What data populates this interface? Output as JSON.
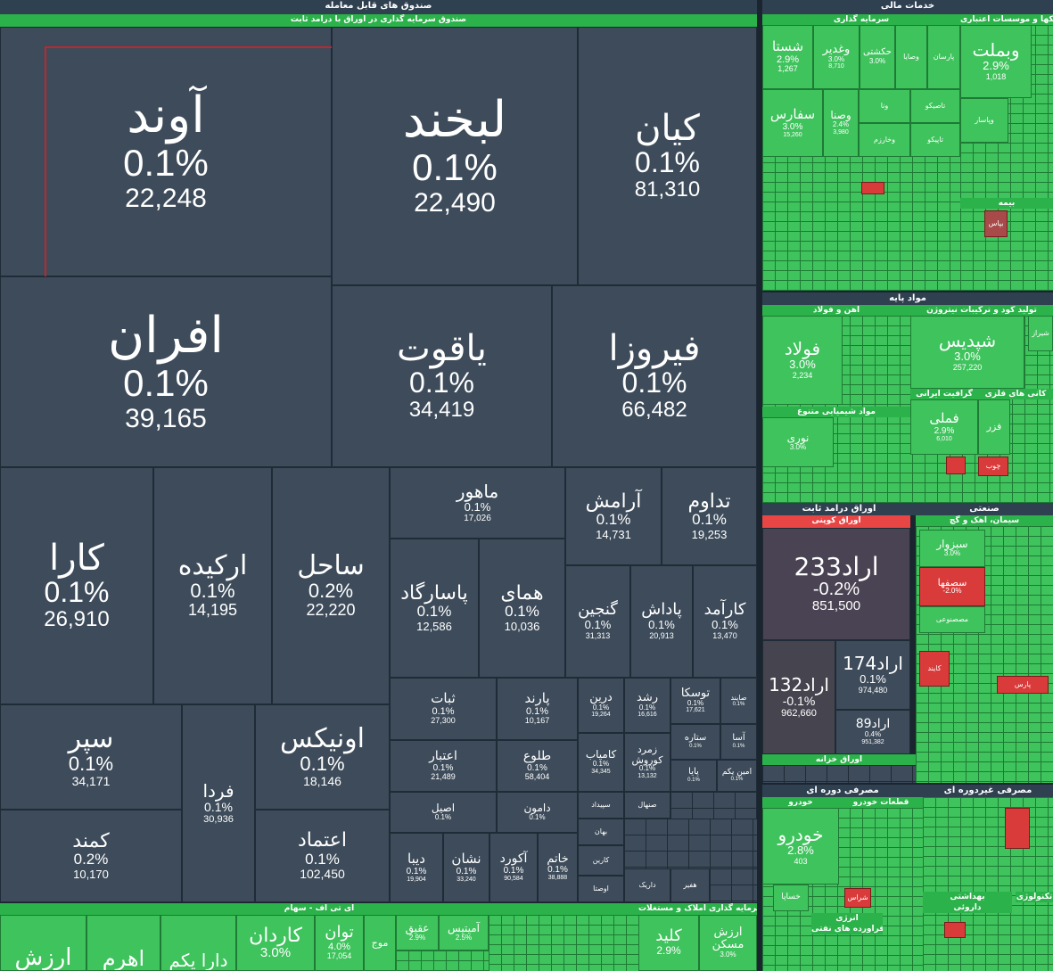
{
  "colors": {
    "background": "#1b2530",
    "neutral_tile": "#3d4b5a",
    "positive_tile": "#3fc35d",
    "negative_tile": "#d93b3b",
    "header": "#2f4050"
  },
  "sections": {
    "etf": "صندوق های قابل معامله",
    "etf_sub": "صندوق سرمایه گذاری در اوراق با درامد ثابت",
    "financial": "خدمات مالی",
    "investment": "سرمایه گذاری",
    "banks": "بانکها و موسسات اعتباری",
    "insurance": "بیمه",
    "basic": "مواد پایه",
    "steel": "اهن و فولاد",
    "petro": "تولید کود و ترکیبات نیتروژن",
    "chemicals": "مواد شیمیایی متنوع",
    "graphite": "گرافیت ایرانی",
    "metals": "کانی های فلزی",
    "fixed_income": "اوراق درامد ثابت",
    "koopon": "اوراق کوپنی",
    "treasury": "اوراق خزانه",
    "industrial": "صنعتی",
    "cement": "سیمان، اهک و گچ",
    "cyclical": "مصرفی دوره ای",
    "auto": "خودرو",
    "auto_parts": "قطعات خودرو",
    "noncyclical": "مصرفی غیردوره ای",
    "health": "بهداشتی",
    "pharma": "داروئی",
    "energy": "انرژی",
    "oil": "فراورده های نفتی",
    "tech": "تکنولوژی",
    "itf": "ای تی اف - سهام",
    "realestate": "سرمایه گذاری املاک و مستغلات"
  },
  "etf_tiles": [
    {
      "symbol": "آوند",
      "pct": "0.1%",
      "vol": "22,248"
    },
    {
      "symbol": "لبخند",
      "pct": "0.1%",
      "vol": "22,490"
    },
    {
      "symbol": "کیان",
      "pct": "0.1%",
      "vol": "81,310"
    },
    {
      "symbol": "افران",
      "pct": "0.1%",
      "vol": "39,165"
    },
    {
      "symbol": "یاقوت",
      "pct": "0.1%",
      "vol": "34,419"
    },
    {
      "symbol": "فیروزا",
      "pct": "0.1%",
      "vol": "66,482"
    },
    {
      "symbol": "کارا",
      "pct": "0.1%",
      "vol": "26,910"
    },
    {
      "symbol": "ارکیده",
      "pct": "0.1%",
      "vol": "14,195"
    },
    {
      "symbol": "ساحل",
      "pct": "0.2%",
      "vol": "22,220"
    },
    {
      "symbol": "ماهور",
      "pct": "0.1%",
      "vol": "17,026"
    },
    {
      "symbol": "آرامش",
      "pct": "0.1%",
      "vol": "14,731"
    },
    {
      "symbol": "تداوم",
      "pct": "0.1%",
      "vol": "19,253"
    },
    {
      "symbol": "پاسارگاد",
      "pct": "0.1%",
      "vol": "12,586"
    },
    {
      "symbol": "همای",
      "pct": "0.1%",
      "vol": "10,036"
    },
    {
      "symbol": "گنجین",
      "pct": "0.1%",
      "vol": "31,313"
    },
    {
      "symbol": "پاداش",
      "pct": "0.1%",
      "vol": "20,913"
    },
    {
      "symbol": "کارآمد",
      "pct": "0.1%",
      "vol": "13,470"
    },
    {
      "symbol": "سپر",
      "pct": "0.1%",
      "vol": "34,171"
    },
    {
      "symbol": "فردا",
      "pct": "0.1%",
      "vol": "30,936"
    },
    {
      "symbol": "اونیکس",
      "pct": "0.1%",
      "vol": "18,146"
    },
    {
      "symbol": "کمند",
      "pct": "0.2%",
      "vol": "10,170"
    },
    {
      "symbol": "اعتماد",
      "pct": "0.1%",
      "vol": "102,450"
    },
    {
      "symbol": "ثبات",
      "pct": "0.1%",
      "vol": "27,300"
    },
    {
      "symbol": "پارند",
      "pct": "0.1%",
      "vol": "10,167"
    },
    {
      "symbol": "درین",
      "pct": "0.1%",
      "vol": "19,264"
    },
    {
      "symbol": "رشد",
      "pct": "0.1%",
      "vol": "16,616"
    },
    {
      "symbol": "توسکا",
      "pct": "0.1%",
      "vol": "17,621"
    },
    {
      "symbol": "صايند",
      "pct": "0.1%",
      "vol": ""
    },
    {
      "symbol": "اعتبار",
      "pct": "0.1%",
      "vol": "21,489"
    },
    {
      "symbol": "طلوع",
      "pct": "0.1%",
      "vol": "58,404"
    },
    {
      "symbol": "کامیاب",
      "pct": "0.1%",
      "vol": "34,345"
    },
    {
      "symbol": "زمرد کوروش",
      "pct": "0.1%",
      "vol": "13,132"
    },
    {
      "symbol": "ستاره",
      "pct": "0.1%",
      "vol": ""
    },
    {
      "symbol": "آسا",
      "pct": "0.1%",
      "vol": ""
    },
    {
      "symbol": "پایا",
      "pct": "0.1%",
      "vol": ""
    },
    {
      "symbol": "امین یکم",
      "pct": "0.1%",
      "vol": ""
    },
    {
      "symbol": "اصیل",
      "pct": "0.1%",
      "vol": ""
    },
    {
      "symbol": "دامون",
      "pct": "0.1%",
      "vol": ""
    },
    {
      "symbol": "دیبا",
      "pct": "0.1%",
      "vol": "19,904"
    },
    {
      "symbol": "نشان",
      "pct": "0.1%",
      "vol": "33,240"
    },
    {
      "symbol": "آکورد",
      "pct": "0.1%",
      "vol": "90,584"
    },
    {
      "symbol": "خاتم",
      "pct": "0.1%",
      "vol": "38,888"
    },
    {
      "symbol": "سپیداد",
      "pct": "",
      "vol": ""
    },
    {
      "symbol": "صنهال",
      "pct": "",
      "vol": ""
    },
    {
      "symbol": "بهان",
      "pct": "",
      "vol": ""
    },
    {
      "symbol": "کارین",
      "pct": "",
      "vol": ""
    },
    {
      "symbol": "اوصتا",
      "pct": "",
      "vol": ""
    },
    {
      "symbol": "داریک",
      "pct": "",
      "vol": ""
    },
    {
      "symbol": "هفیر",
      "pct": "",
      "vol": ""
    }
  ],
  "financial_tiles": [
    {
      "symbol": "وبملت",
      "pct": "2.9%",
      "vol": "1,018"
    },
    {
      "symbol": "شستا",
      "pct": "2.9%",
      "vol": "1,267"
    },
    {
      "symbol": "وغدیر",
      "pct": "3.0%",
      "vol": "8,710"
    },
    {
      "symbol": "حکشتی",
      "pct": "3.0%",
      "vol": ""
    },
    {
      "symbol": "وصایا",
      "pct": "",
      "vol": ""
    },
    {
      "symbol": "پارسان",
      "pct": "",
      "vol": ""
    },
    {
      "symbol": "سفارس",
      "pct": "3.0%",
      "vol": "15,260"
    },
    {
      "symbol": "وصنا",
      "pct": "2.4%",
      "vol": "3,980"
    },
    {
      "symbol": "ونا",
      "pct": "",
      "vol": ""
    },
    {
      "symbol": "تاصیکو",
      "pct": "",
      "vol": ""
    },
    {
      "symbol": "وخارزم",
      "pct": "",
      "vol": ""
    },
    {
      "symbol": "تاپیکو",
      "pct": "",
      "vol": ""
    },
    {
      "symbol": "وپاسار",
      "pct": "",
      "vol": ""
    },
    {
      "symbol": "بپاس",
      "pct": "",
      "vol": ""
    }
  ],
  "basic_tiles": [
    {
      "symbol": "فولاد",
      "pct": "3.0%",
      "vol": "2,234"
    },
    {
      "symbol": "شپدیس",
      "pct": "3.0%",
      "vol": "257,220"
    },
    {
      "symbol": "فملی",
      "pct": "2.9%",
      "vol": "6,010"
    },
    {
      "symbol": "نوری",
      "pct": "3.0%",
      "vol": ""
    },
    {
      "symbol": "فزر",
      "pct": "",
      "vol": ""
    },
    {
      "symbol": "شیراز",
      "pct": "",
      "vol": ""
    },
    {
      "symbol": "چوب",
      "pct": "",
      "vol": ""
    }
  ],
  "fixed_income_tiles": [
    {
      "symbol": "اراد233",
      "pct": "-0.2%",
      "vol": "851,500"
    },
    {
      "symbol": "اراد132",
      "pct": "-0.1%",
      "vol": "962,660"
    },
    {
      "symbol": "اراد174",
      "pct": "0.1%",
      "vol": "974,480"
    },
    {
      "symbol": "اراد89",
      "pct": "0.4%",
      "vol": "951,382"
    }
  ],
  "industrial_tiles": [
    {
      "symbol": "سبزوار",
      "pct": "3.0%",
      "vol": ""
    },
    {
      "symbol": "سصفها",
      "pct": "-2.0%",
      "vol": ""
    },
    {
      "symbol": "مصصنوعی",
      "pct": "",
      "vol": ""
    },
    {
      "symbol": "کایند",
      "pct": "",
      "vol": ""
    },
    {
      "symbol": "پارس",
      "pct": "",
      "vol": ""
    }
  ],
  "cyclical_tiles": [
    {
      "symbol": "خودرو",
      "pct": "2.8%",
      "vol": "403"
    },
    {
      "symbol": "خساپا",
      "pct": "",
      "vol": ""
    },
    {
      "symbol": "شراس",
      "pct": "",
      "vol": ""
    }
  ],
  "bottom_tiles": [
    {
      "symbol": "ارزش",
      "pct": "",
      "vol": ""
    },
    {
      "symbol": "اهرم",
      "pct": "",
      "vol": ""
    },
    {
      "symbol": "دارا یکم",
      "pct": "",
      "vol": ""
    },
    {
      "symbol": "کاردان",
      "pct": "3.0%",
      "vol": ""
    },
    {
      "symbol": "توان",
      "pct": "4.0%",
      "vol": "17,054"
    },
    {
      "symbol": "موج",
      "pct": "",
      "vol": ""
    },
    {
      "symbol": "عقیق",
      "pct": "2.9%",
      "vol": ""
    },
    {
      "symbol": "آمیتیس",
      "pct": "2.5%",
      "vol": ""
    },
    {
      "symbol": "کلید",
      "pct": "2.9%",
      "vol": ""
    },
    {
      "symbol": "ارزش مسکن",
      "pct": "3.0%",
      "vol": ""
    }
  ]
}
